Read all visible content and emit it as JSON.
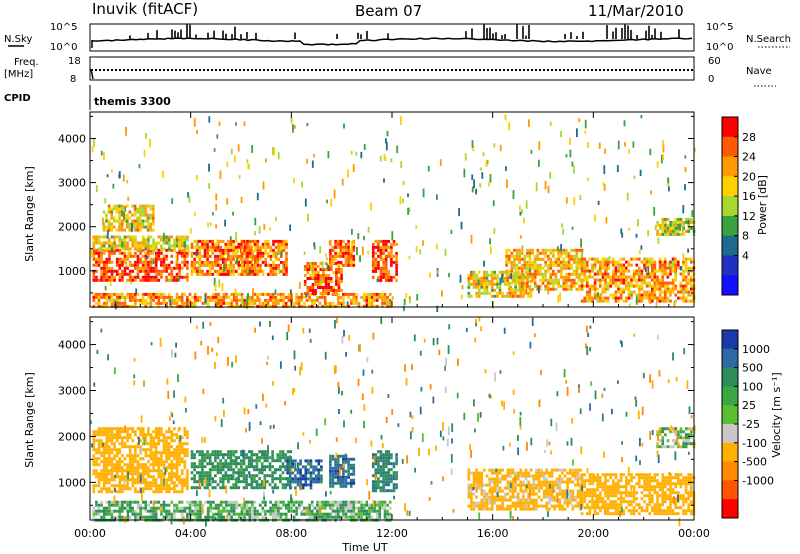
{
  "header": {
    "station": "Inuvik (fitACF)",
    "beam": "Beam 07",
    "date": "11/Mar/2010"
  },
  "panels": {
    "nsky_label": "N.Sky",
    "nsearch_label": "N.Search",
    "nsky_ticks": [
      "10^5",
      "10^0"
    ],
    "nsearch_ticks": [
      "10^5",
      "10^0"
    ],
    "freq_label": "Freq.",
    "freq_unit": "[MHz]",
    "freq_ticks": [
      "18",
      "8"
    ],
    "nave_label": "Nave",
    "nave_ticks": [
      "60",
      "0"
    ],
    "cpid_label": "CPID",
    "cpid_value": "themis 3300"
  },
  "power_colorbar": {
    "label": "Power [dB]",
    "ticks": [
      "28",
      "24",
      "20",
      "16",
      "12",
      "8",
      "4"
    ],
    "colors": [
      "#ff0000",
      "#ff5a00",
      "#ff9a00",
      "#ffd000",
      "#a8d830",
      "#3aa040",
      "#1e6a8c",
      "#2030c0",
      "#1010ff"
    ]
  },
  "velocity_colorbar": {
    "label": "Velocity [m s⁻¹]",
    "ticks": [
      "1000",
      "500",
      "100",
      "25",
      "-25",
      "-100",
      "-500",
      "-1000"
    ],
    "colors": [
      "#1a3aa8",
      "#2c6aa0",
      "#2e8c5c",
      "#3aa840",
      "#58c030",
      "#c8c8c8",
      "#ffb000",
      "#ff8a00",
      "#ff5500",
      "#ff0000"
    ]
  },
  "axes": {
    "y_label": "Slant Range [km]",
    "x_label": "Time UT",
    "y_ticks": [
      "4000",
      "3000",
      "2000",
      "1000"
    ],
    "x_ticks": [
      "00:00",
      "04:00",
      "08:00",
      "12:00",
      "16:00",
      "20:00",
      "00:00"
    ]
  },
  "chart_data": [
    {
      "type": "heatmap",
      "title": "",
      "quantity": "Power",
      "xlabel": "Time UT",
      "ylabel": "Slant Range [km]",
      "xlim_hours": [
        0,
        24
      ],
      "ylim_km": [
        180,
        4600
      ],
      "colorbar_label": "Power [dB]",
      "scale": [
        0,
        30
      ],
      "echo_regions": [
        {
          "t0": 0.1,
          "t1": 11.9,
          "r0": 200,
          "r1": 500,
          "value": 22
        },
        {
          "t0": 0.1,
          "t1": 3.9,
          "r0": 800,
          "r1": 1500,
          "value": 27
        },
        {
          "t0": 0.1,
          "t1": 3.9,
          "r0": 1500,
          "r1": 1800,
          "value": 17
        },
        {
          "t0": 0.5,
          "t1": 2.5,
          "r0": 1900,
          "r1": 2500,
          "value": 18
        },
        {
          "t0": 4.0,
          "t1": 6.5,
          "r0": 900,
          "r1": 1700,
          "value": 24
        },
        {
          "t0": 6.0,
          "t1": 7.8,
          "r0": 900,
          "r1": 1700,
          "value": 25
        },
        {
          "t0": 8.5,
          "t1": 10.0,
          "r0": 500,
          "r1": 1200,
          "value": 26
        },
        {
          "t0": 9.5,
          "t1": 10.5,
          "r0": 1100,
          "r1": 1700,
          "value": 25
        },
        {
          "t0": 11.2,
          "t1": 12.2,
          "r0": 800,
          "r1": 1700,
          "value": 28
        },
        {
          "t0": 15.0,
          "t1": 17.5,
          "r0": 400,
          "r1": 1000,
          "value": 18
        },
        {
          "t0": 16.5,
          "t1": 19.5,
          "r0": 600,
          "r1": 1500,
          "value": 20
        },
        {
          "t0": 19.5,
          "t1": 24.0,
          "r0": 300,
          "r1": 1300,
          "value": 22
        },
        {
          "t0": 22.5,
          "t1": 24.0,
          "r0": 1800,
          "r1": 2200,
          "value": 16
        }
      ]
    },
    {
      "type": "heatmap",
      "title": "",
      "quantity": "Velocity",
      "xlabel": "Time UT",
      "ylabel": "Slant Range [km]",
      "xlim_hours": [
        0,
        24
      ],
      "ylim_km": [
        180,
        4600
      ],
      "colorbar_label": "Velocity [m s⁻¹]",
      "scale": [
        -1000,
        1000
      ],
      "echo_regions": [
        {
          "t0": 0.1,
          "t1": 3.9,
          "r0": 800,
          "r1": 2200,
          "value": -300
        },
        {
          "t0": 0.1,
          "t1": 11.9,
          "r0": 200,
          "r1": 600,
          "value": 60
        },
        {
          "t0": 4.0,
          "t1": 8.0,
          "r0": 900,
          "r1": 1700,
          "value": 200
        },
        {
          "t0": 7.8,
          "t1": 9.2,
          "r0": 900,
          "r1": 1500,
          "value": 800
        },
        {
          "t0": 9.5,
          "t1": 10.5,
          "r0": 900,
          "r1": 1600,
          "value": 700
        },
        {
          "t0": 11.2,
          "t1": 12.2,
          "r0": 800,
          "r1": 1700,
          "value": 400
        },
        {
          "t0": 15.0,
          "t1": 19.5,
          "r0": 400,
          "r1": 1300,
          "value": -200
        },
        {
          "t0": 19.5,
          "t1": 24.0,
          "r0": 300,
          "r1": 1200,
          "value": -250
        },
        {
          "t0": 22.5,
          "t1": 24.0,
          "r0": 1800,
          "r1": 2200,
          "value": 10
        }
      ]
    }
  ]
}
